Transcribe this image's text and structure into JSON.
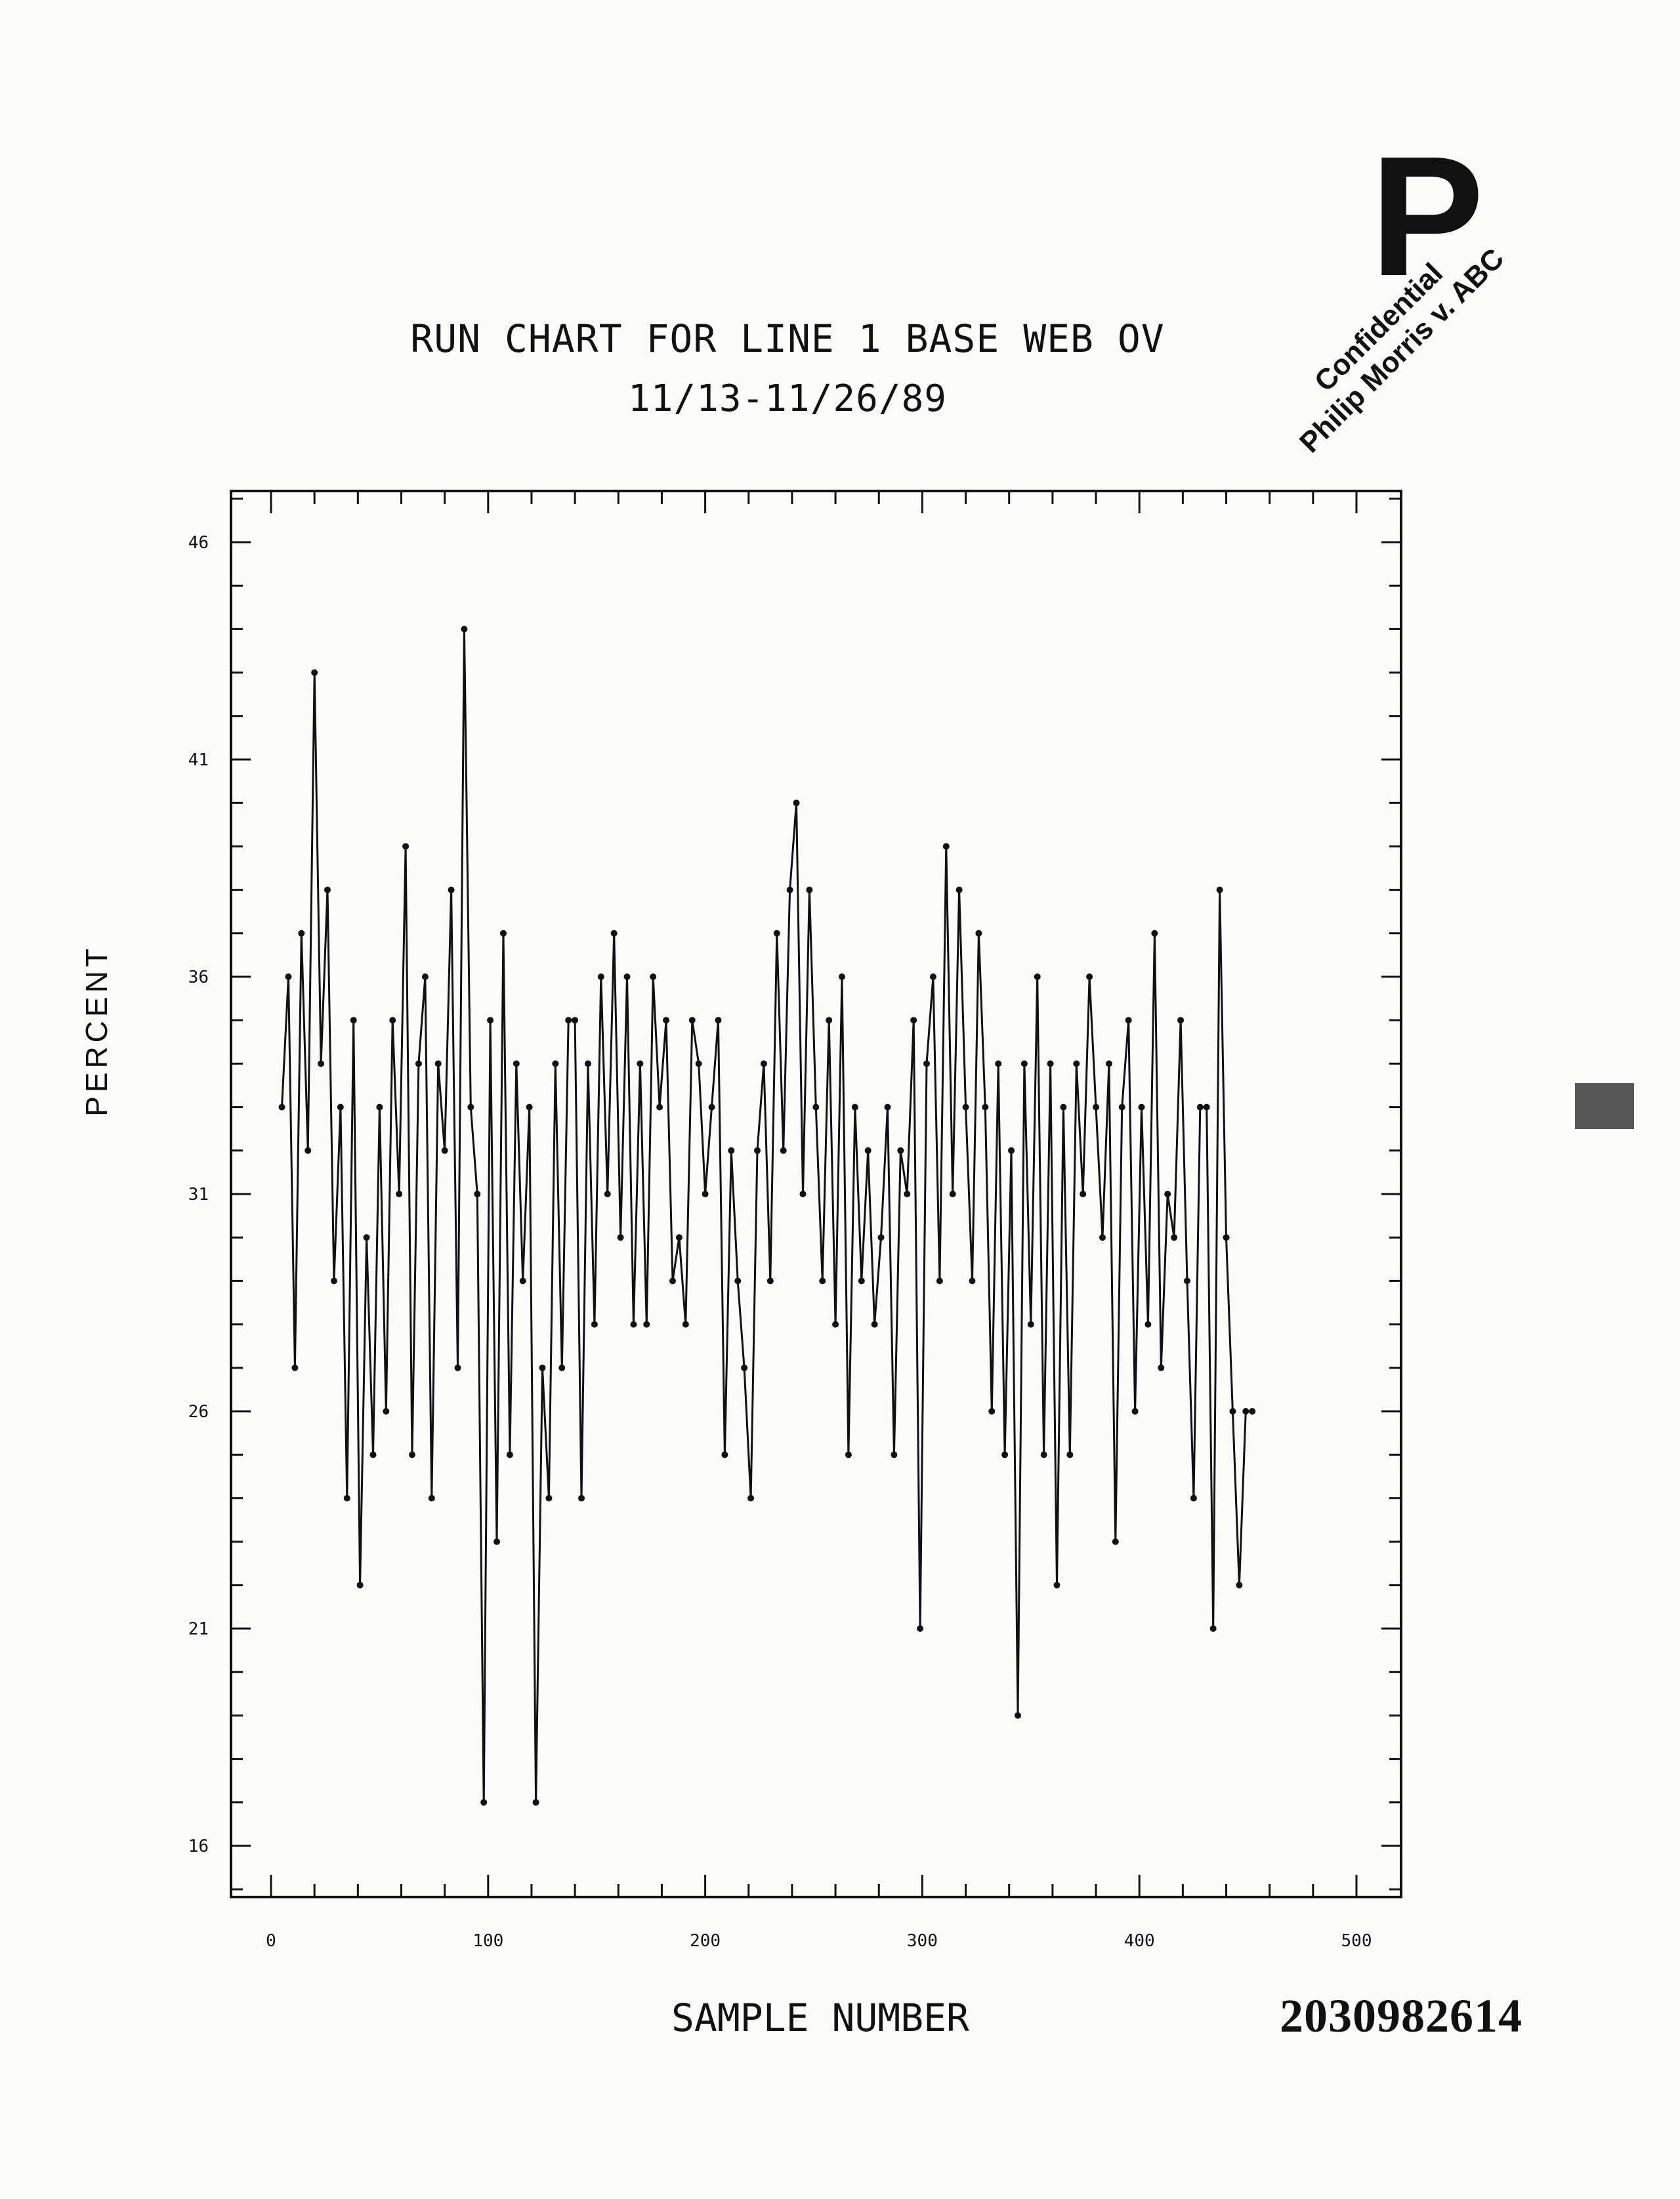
{
  "stamp_letter": "P",
  "watermark": {
    "line1": "Confidential",
    "line2": "Philip Morris v. ABC"
  },
  "document_number": "2030982614",
  "chart_data": {
    "type": "line",
    "title": "RUN CHART FOR LINE 1 BASE WEB OV",
    "subtitle": "11/13-11/26/89",
    "xlabel": "SAMPLE NUMBER",
    "ylabel": "PERCENT",
    "xlim": [
      0,
      500
    ],
    "ylim": [
      14.7,
      47.2
    ],
    "xticks": [
      0,
      100,
      200,
      300,
      400,
      500
    ],
    "xtick_labels": [
      "0",
      "100",
      "200",
      "300",
      "400",
      "500"
    ],
    "yticks": [
      16,
      21,
      26,
      31,
      36,
      41,
      46
    ],
    "ytick_labels": [
      "16",
      "21",
      "26",
      "31",
      "36",
      "41",
      "46"
    ],
    "grid": false,
    "legend": "none",
    "series": [
      {
        "x": [
          5,
          8,
          11,
          14,
          17,
          20,
          23,
          26,
          29,
          32,
          35,
          38,
          41,
          44,
          47,
          50,
          53,
          56,
          59,
          62,
          65,
          68,
          71,
          74,
          77,
          80,
          83,
          86,
          89,
          92,
          95,
          98,
          101,
          104,
          107,
          110,
          113,
          116,
          119,
          122,
          125,
          128,
          131,
          134,
          137,
          140,
          143,
          146,
          149,
          152,
          155,
          158,
          161,
          164,
          167,
          170,
          173,
          176,
          179,
          182,
          185,
          188,
          191,
          194,
          197,
          200,
          203,
          206,
          209,
          212,
          215,
          218,
          221,
          224,
          227,
          230,
          233,
          236,
          239,
          242,
          245,
          248,
          251,
          254,
          257,
          260,
          263,
          266,
          269,
          272,
          275,
          278,
          281,
          284,
          287,
          290,
          293,
          296,
          299,
          302,
          305,
          308,
          311,
          314,
          317,
          320,
          323,
          326,
          329,
          332,
          335,
          338,
          341,
          344,
          347,
          350,
          353,
          356,
          359,
          362,
          365,
          368,
          371,
          374,
          377,
          380,
          383,
          386,
          389,
          392,
          395,
          398,
          401,
          404,
          407,
          410,
          413,
          416,
          419,
          422,
          425,
          428,
          431,
          434,
          437,
          440,
          443,
          446,
          449,
          452
        ],
        "y": [
          33,
          36,
          27,
          37,
          32,
          43,
          34,
          38,
          29,
          33,
          24,
          35,
          22,
          30,
          25,
          33,
          26,
          35,
          31,
          39,
          25,
          34,
          36,
          24,
          34,
          32,
          38,
          27,
          44,
          33,
          31,
          17,
          35,
          23,
          37,
          25,
          34,
          29,
          33,
          17,
          27,
          24,
          34,
          27,
          35,
          35,
          24,
          34,
          28,
          36,
          31,
          37,
          30,
          36,
          28,
          34,
          28,
          36,
          33,
          35,
          29,
          30,
          28,
          35,
          34,
          31,
          33,
          35,
          25,
          32,
          29,
          27,
          24,
          32,
          34,
          29,
          37,
          32,
          38,
          40,
          31,
          38,
          33,
          29,
          35,
          28,
          36,
          25,
          33,
          29,
          32,
          28,
          30,
          33,
          25,
          32,
          31,
          35,
          21,
          34,
          36,
          29,
          39,
          31,
          38,
          33,
          29,
          37,
          33,
          26,
          34,
          25,
          32,
          19,
          34,
          28,
          36,
          25,
          34,
          22,
          33,
          25,
          34,
          31,
          36,
          33,
          30,
          34,
          23,
          33,
          35,
          26,
          33,
          28,
          37,
          27,
          31,
          30,
          35,
          29,
          24,
          33,
          33,
          21,
          38,
          30,
          26,
          22,
          26,
          26
        ]
      }
    ]
  }
}
